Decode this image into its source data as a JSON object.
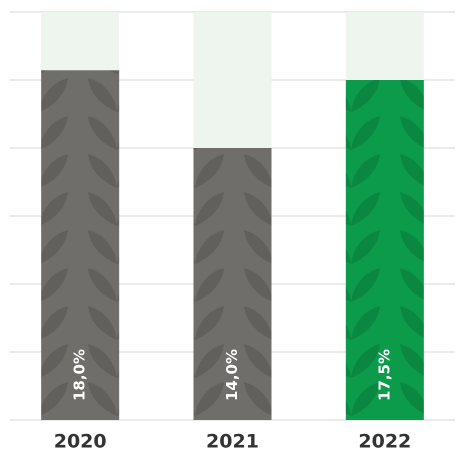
{
  "chart_data": {
    "type": "bar",
    "categories": [
      "2020",
      "2021",
      "2022"
    ],
    "values": [
      18.0,
      14.0,
      17.5
    ],
    "value_labels": [
      "18,0%",
      "14,0%",
      "17,5%"
    ],
    "colors": [
      "#6f6e6a",
      "#6f6e6a",
      "#0b9b4a"
    ],
    "background_color": "#eef5ee",
    "ylim": [
      0,
      21
    ],
    "yticks": [
      0,
      3.5,
      7,
      10.5,
      14,
      17.5,
      21
    ],
    "grid": true
  }
}
